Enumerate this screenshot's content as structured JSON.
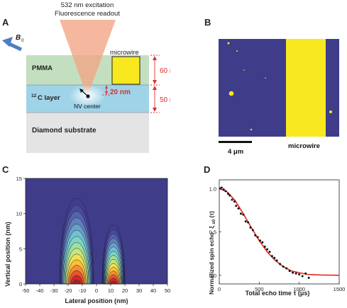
{
  "panels": {
    "a": {
      "letter": "A",
      "excitation_line1": "532 nm excitation",
      "excitation_line2": "Fluorescence readout",
      "b0_label": "B",
      "b0_sub": "0",
      "pmma_label": "PMMA",
      "c12_sup": "12",
      "c12_label": "C layer",
      "nv_label": "NV center",
      "substrate_label": "Diamond substrate",
      "microwire_label": "microwire",
      "dim_60": "60 nm",
      "dim_20": "20 nm",
      "dim_50": "50 nm"
    },
    "b": {
      "letter": "B",
      "scalebar_label": "4 μm",
      "microwire_label": "microwire"
    },
    "c": {
      "letter": "C",
      "ylabel": "Vertical position (nm)",
      "xlabel": "Lateral position (nm)",
      "xticks": [
        "-50",
        "-40",
        "-30",
        "-20",
        "-10",
        "0",
        "10",
        "20",
        "30",
        "40",
        "50"
      ],
      "yticks": [
        "0",
        "5",
        "10",
        "15"
      ]
    },
    "d": {
      "letter": "D",
      "ylabel_prefix": "Normalized spin echo",
      "ylabel_symbol": "ξ",
      "ylabel_sub": "s0",
      "ylabel_suffix": "(τ)",
      "xlabel": "Total echo time τ (μs)",
      "xticks": [
        "0",
        "500",
        "1000",
        "1500"
      ],
      "yticks": [
        "0.0",
        "0.5",
        "1.0"
      ]
    }
  },
  "colors": {
    "pmma": "#c3dfc0",
    "c12": "#9fd3e8",
    "substrate": "#e4e4e4",
    "cone": "#f2a484",
    "microwire": "#f7e81f",
    "map_bg": "#3f3c8a",
    "fit": "#e0261f",
    "dims": "#d83030",
    "b0_arrow": "#4c7ec1"
  },
  "chart_data": [
    {
      "type": "heatmap",
      "title": "",
      "xlabel": "Lateral position (nm)",
      "ylabel": "Vertical position (nm)",
      "xlim": [
        -50,
        50
      ],
      "ylim": [
        0,
        15
      ],
      "lobes": [
        {
          "center_x": -14,
          "half_width": 12,
          "peak_height": 12.2
        },
        {
          "center_x": 12,
          "half_width": 8,
          "peak_height": 8.4
        }
      ],
      "contour_colors": [
        "#433e8c",
        "#4a4a9a",
        "#5563ac",
        "#5f80bb",
        "#69a0c7",
        "#72c1d1",
        "#7fd5c2",
        "#9fdfa0",
        "#c8e579",
        "#f0e154",
        "#f9c13a",
        "#f48e2d",
        "#e7562b",
        "#cf2a27",
        "#a71f2a"
      ]
    },
    {
      "type": "scatter",
      "title": "",
      "xlabel": "Total echo time τ (μs)",
      "ylabel": "Normalized spin echo ξs0(τ)",
      "xlim": [
        0,
        1500
      ],
      "ylim": [
        -0.1,
        1.1
      ],
      "points": {
        "x": [
          10,
          30,
          55,
          80,
          110,
          130,
          160,
          190,
          210,
          240,
          270,
          300,
          330,
          360,
          390,
          420,
          450,
          480,
          510,
          540,
          570,
          600,
          630,
          660,
          690,
          720,
          760,
          800,
          840,
          880,
          920,
          960,
          1000,
          1040,
          1080,
          1120
        ],
        "y": [
          1.0,
          1.01,
          0.99,
          0.97,
          0.94,
          0.92,
          0.87,
          0.85,
          0.8,
          0.77,
          0.71,
          0.7,
          0.62,
          0.61,
          0.55,
          0.52,
          0.46,
          0.44,
          0.4,
          0.38,
          0.33,
          0.3,
          0.27,
          0.22,
          0.2,
          0.17,
          0.13,
          0.1,
          0.08,
          0.05,
          0.03,
          0.02,
          0.01,
          -0.01,
          0.02,
          -0.03
        ]
      },
      "fit": {
        "x": [
          0,
          100,
          200,
          300,
          400,
          500,
          600,
          700,
          800,
          900,
          1000,
          1100,
          1200,
          1300,
          1400,
          1500
        ],
        "y": [
          1.0,
          0.96,
          0.86,
          0.71,
          0.55,
          0.4,
          0.27,
          0.17,
          0.1,
          0.05,
          0.03,
          0.01,
          0.005,
          0.002,
          0.001,
          0.0
        ]
      }
    }
  ]
}
